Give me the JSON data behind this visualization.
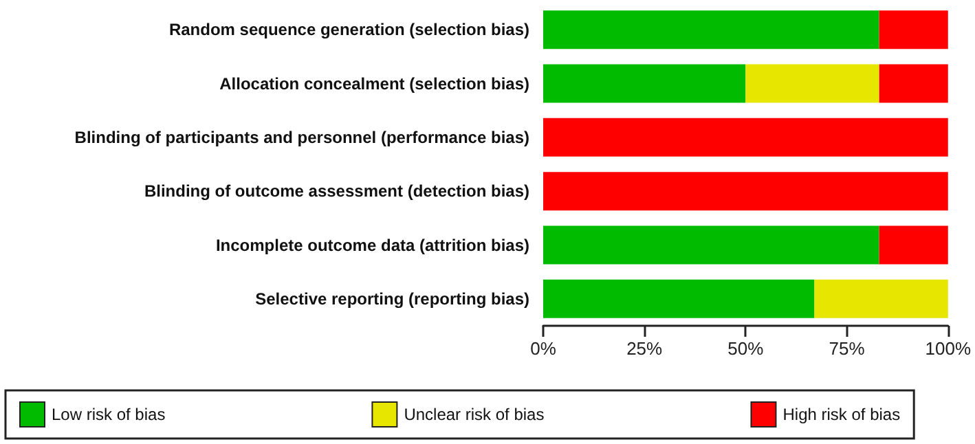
{
  "chart_data": {
    "type": "bar",
    "orientation": "horizontal",
    "stacked": true,
    "categories": [
      "Random sequence generation (selection bias)",
      "Allocation concealment (selection bias)",
      "Blinding of participants and personnel (performance bias)",
      "Blinding of outcome assessment (detection bias)",
      "Incomplete outcome data (attrition bias)",
      "Selective reporting (reporting bias)"
    ],
    "series": [
      {
        "name": "Low risk of bias",
        "color": "#00bb00",
        "values": [
          83,
          50,
          0,
          0,
          83,
          67
        ]
      },
      {
        "name": "Unclear risk of bias",
        "color": "#e6e600",
        "values": [
          0,
          33,
          0,
          0,
          0,
          33
        ]
      },
      {
        "name": "High risk of bias",
        "color": "#ff0000",
        "values": [
          17,
          17,
          100,
          100,
          17,
          0
        ]
      }
    ],
    "xlim": [
      0,
      100
    ],
    "xticks": [
      {
        "value": 0,
        "label": "0%"
      },
      {
        "value": 25,
        "label": "25%"
      },
      {
        "value": 50,
        "label": "50%"
      },
      {
        "value": 75,
        "label": "75%"
      },
      {
        "value": 100,
        "label": "100%"
      }
    ],
    "grid": false,
    "legend": "bottom"
  }
}
